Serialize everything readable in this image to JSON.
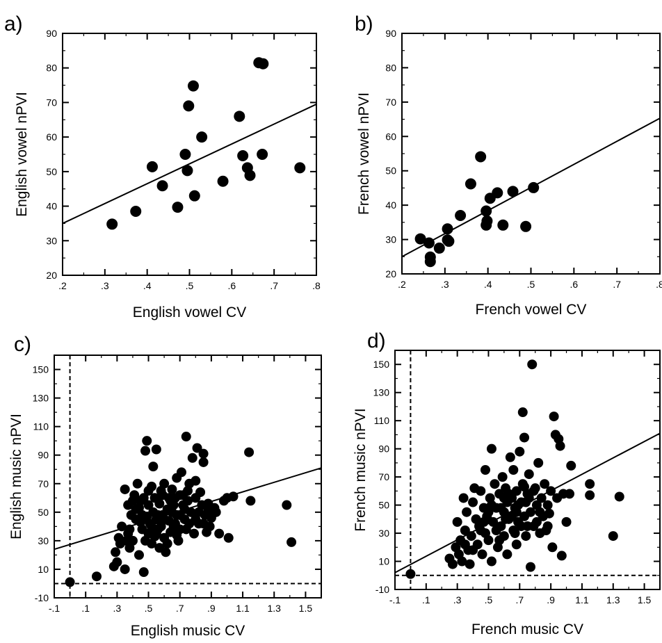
{
  "chart_data": [
    {
      "type": "scatter",
      "panel_label": "a)",
      "xlabel": "English vowel CV",
      "ylabel": "English  vowel  nPVI",
      "xlim": [
        0.2,
        0.8
      ],
      "ylim": [
        20,
        90
      ],
      "x_tick_labels": [
        ".2",
        ".3",
        ".4",
        ".5",
        ".6",
        ".7",
        ".8"
      ],
      "x_tick_values": [
        0.2,
        0.3,
        0.4,
        0.5,
        0.6,
        0.7,
        0.8
      ],
      "y_tick_labels": [
        "20",
        "30",
        "40",
        "50",
        "60",
        "70",
        "80",
        "90"
      ],
      "y_tick_values": [
        20,
        30,
        40,
        50,
        60,
        70,
        80,
        90
      ],
      "points": [
        [
          0.317,
          34.8
        ],
        [
          0.373,
          38.5
        ],
        [
          0.412,
          51.4
        ],
        [
          0.436,
          45.9
        ],
        [
          0.472,
          39.7
        ],
        [
          0.49,
          55.0
        ],
        [
          0.495,
          50.3
        ],
        [
          0.498,
          69.0
        ],
        [
          0.509,
          74.8
        ],
        [
          0.512,
          43.0
        ],
        [
          0.529,
          60.0
        ],
        [
          0.579,
          47.2
        ],
        [
          0.618,
          66.0
        ],
        [
          0.626,
          54.6
        ],
        [
          0.637,
          51.1
        ],
        [
          0.643,
          48.9
        ],
        [
          0.664,
          81.5
        ],
        [
          0.674,
          81.2
        ],
        [
          0.672,
          55.0
        ],
        [
          0.761,
          51.1
        ]
      ],
      "regression_line": [
        [
          0.2,
          35.0
        ],
        [
          0.8,
          69.5
        ]
      ],
      "dashed_lines": []
    },
    {
      "type": "scatter",
      "panel_label": "b)",
      "xlabel": "French vowel CV",
      "ylabel": "French  vowel  nPVI",
      "xlim": [
        0.2,
        0.8
      ],
      "ylim": [
        20,
        90
      ],
      "x_tick_labels": [
        ".2",
        ".3",
        ".4",
        ".5",
        ".6",
        ".7",
        ".8"
      ],
      "x_tick_values": [
        0.2,
        0.3,
        0.4,
        0.5,
        0.6,
        0.7,
        0.8
      ],
      "y_tick_labels": [
        "20",
        "30",
        "40",
        "50",
        "60",
        "70",
        "80",
        "90"
      ],
      "y_tick_values": [
        20,
        30,
        40,
        50,
        60,
        70,
        80,
        90
      ],
      "points": [
        [
          0.243,
          30.2
        ],
        [
          0.263,
          29.0
        ],
        [
          0.266,
          23.6
        ],
        [
          0.266,
          24.9
        ],
        [
          0.287,
          27.5
        ],
        [
          0.306,
          33.1
        ],
        [
          0.306,
          29.9
        ],
        [
          0.309,
          29.5
        ],
        [
          0.336,
          37.0
        ],
        [
          0.36,
          46.2
        ],
        [
          0.383,
          54.1
        ],
        [
          0.396,
          38.3
        ],
        [
          0.396,
          34.2
        ],
        [
          0.398,
          35.4
        ],
        [
          0.405,
          42.0
        ],
        [
          0.422,
          43.6
        ],
        [
          0.435,
          34.2
        ],
        [
          0.458,
          44.0
        ],
        [
          0.506,
          45.1
        ],
        [
          0.488,
          33.8
        ]
      ],
      "regression_line": [
        [
          0.2,
          25.0
        ],
        [
          0.8,
          65.3
        ]
      ],
      "dashed_lines": []
    },
    {
      "type": "scatter",
      "panel_label": "c)",
      "xlabel": "English music CV",
      "ylabel": "English  music  nPVI",
      "xlim": [
        -0.1,
        1.6
      ],
      "ylim": [
        -10,
        160
      ],
      "x_tick_labels": [
        "-.1",
        ".1",
        ".3",
        ".5",
        ".7",
        ".9",
        "1.1",
        "1.3",
        "1.5"
      ],
      "x_tick_values": [
        -0.1,
        0.1,
        0.3,
        0.5,
        0.7,
        0.9,
        1.1,
        1.3,
        1.5
      ],
      "y_tick_labels": [
        "-10",
        "10",
        "30",
        "50",
        "70",
        "90",
        "110",
        "130",
        "150"
      ],
      "y_tick_values": [
        -10,
        10,
        30,
        50,
        70,
        90,
        110,
        130,
        150
      ],
      "points": [
        [
          0.0,
          1
        ],
        [
          0.17,
          5
        ],
        [
          0.28,
          12
        ],
        [
          0.29,
          22
        ],
        [
          0.31,
          32
        ],
        [
          0.3,
          15
        ],
        [
          0.32,
          28
        ],
        [
          0.35,
          10
        ],
        [
          0.33,
          40
        ],
        [
          0.35,
          66
        ],
        [
          0.37,
          55
        ],
        [
          0.37,
          35
        ],
        [
          0.38,
          25
        ],
        [
          0.39,
          48
        ],
        [
          0.4,
          30
        ],
        [
          0.41,
          62
        ],
        [
          0.42,
          52
        ],
        [
          0.43,
          70
        ],
        [
          0.44,
          20
        ],
        [
          0.45,
          43
        ],
        [
          0.46,
          38
        ],
        [
          0.47,
          60
        ],
        [
          0.47,
          8
        ],
        [
          0.48,
          93
        ],
        [
          0.49,
          100
        ],
        [
          0.49,
          47
        ],
        [
          0.5,
          55
        ],
        [
          0.5,
          35
        ],
        [
          0.51,
          42
        ],
        [
          0.52,
          28
        ],
        [
          0.52,
          68
        ],
        [
          0.53,
          82
        ],
        [
          0.53,
          50
        ],
        [
          0.54,
          60
        ],
        [
          0.55,
          94
        ],
        [
          0.55,
          45
        ],
        [
          0.56,
          38
        ],
        [
          0.57,
          25
        ],
        [
          0.57,
          56
        ],
        [
          0.58,
          65
        ],
        [
          0.59,
          48
        ],
        [
          0.6,
          32
        ],
        [
          0.6,
          70
        ],
        [
          0.61,
          22
        ],
        [
          0.62,
          52
        ],
        [
          0.63,
          44
        ],
        [
          0.63,
          60
        ],
        [
          0.64,
          36
        ],
        [
          0.65,
          66
        ],
        [
          0.66,
          55
        ],
        [
          0.67,
          42
        ],
        [
          0.68,
          74
        ],
        [
          0.68,
          48
        ],
        [
          0.69,
          30
        ],
        [
          0.7,
          62
        ],
        [
          0.71,
          78
        ],
        [
          0.72,
          55
        ],
        [
          0.73,
          45
        ],
        [
          0.74,
          103
        ],
        [
          0.74,
          38
        ],
        [
          0.75,
          58
        ],
        [
          0.76,
          70
        ],
        [
          0.77,
          50
        ],
        [
          0.78,
          88
        ],
        [
          0.79,
          35
        ],
        [
          0.8,
          72
        ],
        [
          0.8,
          60
        ],
        [
          0.81,
          95
        ],
        [
          0.82,
          42
        ],
        [
          0.83,
          64
        ],
        [
          0.84,
          55
        ],
        [
          0.85,
          91
        ],
        [
          0.85,
          85
        ],
        [
          0.86,
          48
        ],
        [
          0.87,
          36
        ],
        [
          0.88,
          56
        ],
        [
          0.89,
          40
        ],
        [
          0.9,
          46
        ],
        [
          0.92,
          53
        ],
        [
          0.95,
          35
        ],
        [
          0.98,
          58
        ],
        [
          1.0,
          60
        ],
        [
          1.01,
          32
        ],
        [
          1.04,
          61
        ],
        [
          1.14,
          92
        ],
        [
          1.15,
          58
        ],
        [
          1.38,
          55
        ],
        [
          1.41,
          29
        ],
        [
          0.4,
          58
        ],
        [
          0.45,
          58
        ],
        [
          0.5,
          65
        ],
        [
          0.55,
          35
        ],
        [
          0.6,
          45
        ],
        [
          0.65,
          50
        ],
        [
          0.7,
          38
        ],
        [
          0.75,
          65
        ],
        [
          0.8,
          45
        ],
        [
          0.85,
          42
        ],
        [
          0.58,
          40
        ],
        [
          0.62,
          28
        ],
        [
          0.66,
          40
        ],
        [
          0.46,
          48
        ],
        [
          0.52,
          40
        ],
        [
          0.68,
          34
        ],
        [
          0.72,
          62
        ],
        [
          0.56,
          48
        ],
        [
          0.36,
          30
        ],
        [
          0.42,
          45
        ],
        [
          0.48,
          30
        ],
        [
          0.54,
          33
        ],
        [
          0.64,
          58
        ],
        [
          0.7,
          48
        ],
        [
          0.76,
          42
        ],
        [
          0.82,
          50
        ],
        [
          0.88,
          52
        ],
        [
          0.93,
          50
        ],
        [
          0.38,
          38
        ],
        [
          0.44,
          53
        ],
        [
          0.59,
          62
        ],
        [
          0.67,
          60
        ],
        [
          0.73,
          52
        ]
      ],
      "regression_line": [
        [
          -0.1,
          24
        ],
        [
          1.6,
          81
        ]
      ],
      "dashed_lines": [
        {
          "axis": "x",
          "value": 0.0
        },
        {
          "axis": "y",
          "value": 0.0
        }
      ]
    },
    {
      "type": "scatter",
      "panel_label": "d)",
      "xlabel": "French music CV",
      "ylabel": "French  music  nPVI",
      "xlim": [
        -0.1,
        1.6
      ],
      "ylim": [
        -10,
        160
      ],
      "x_tick_labels": [
        "-.1",
        ".1",
        ".3",
        ".5",
        ".7",
        ".9",
        "1.1",
        "1.3",
        "1.5"
      ],
      "x_tick_values": [
        -0.1,
        0.1,
        0.3,
        0.5,
        0.7,
        0.9,
        1.1,
        1.3,
        1.5
      ],
      "y_tick_labels": [
        "-10",
        "10",
        "30",
        "50",
        "70",
        "90",
        "110",
        "130",
        "150"
      ],
      "y_tick_values": [
        -10,
        10,
        30,
        50,
        70,
        90,
        110,
        130,
        150
      ],
      "points": [
        [
          0.0,
          1
        ],
        [
          0.25,
          12
        ],
        [
          0.27,
          8
        ],
        [
          0.29,
          20
        ],
        [
          0.3,
          38
        ],
        [
          0.31,
          15
        ],
        [
          0.32,
          25
        ],
        [
          0.33,
          10
        ],
        [
          0.34,
          55
        ],
        [
          0.35,
          32
        ],
        [
          0.36,
          45
        ],
        [
          0.37,
          18
        ],
        [
          0.38,
          8
        ],
        [
          0.39,
          28
        ],
        [
          0.4,
          52
        ],
        [
          0.41,
          62
        ],
        [
          0.42,
          40
        ],
        [
          0.43,
          22
        ],
        [
          0.44,
          35
        ],
        [
          0.45,
          60
        ],
        [
          0.46,
          15
        ],
        [
          0.47,
          48
        ],
        [
          0.48,
          75
        ],
        [
          0.48,
          30
        ],
        [
          0.49,
          42
        ],
        [
          0.5,
          25
        ],
        [
          0.51,
          55
        ],
        [
          0.52,
          90
        ],
        [
          0.52,
          10
        ],
        [
          0.53,
          38
        ],
        [
          0.54,
          65
        ],
        [
          0.55,
          48
        ],
        [
          0.56,
          20
        ],
        [
          0.57,
          58
        ],
        [
          0.58,
          35
        ],
        [
          0.59,
          70
        ],
        [
          0.6,
          28
        ],
        [
          0.6,
          45
        ],
        [
          0.61,
          62
        ],
        [
          0.62,
          15
        ],
        [
          0.62,
          52
        ],
        [
          0.63,
          40
        ],
        [
          0.64,
          84
        ],
        [
          0.65,
          55
        ],
        [
          0.66,
          32
        ],
        [
          0.66,
          75
        ],
        [
          0.67,
          48
        ],
        [
          0.68,
          60
        ],
        [
          0.68,
          22
        ],
        [
          0.69,
          38
        ],
        [
          0.7,
          88
        ],
        [
          0.71,
          52
        ],
        [
          0.72,
          116
        ],
        [
          0.72,
          65
        ],
        [
          0.73,
          98
        ],
        [
          0.73,
          42
        ],
        [
          0.74,
          28
        ],
        [
          0.75,
          58
        ],
        [
          0.76,
          72
        ],
        [
          0.77,
          6
        ],
        [
          0.77,
          45
        ],
        [
          0.78,
          150
        ],
        [
          0.79,
          35
        ],
        [
          0.8,
          62
        ],
        [
          0.81,
          50
        ],
        [
          0.82,
          80
        ],
        [
          0.83,
          30
        ],
        [
          0.84,
          55
        ],
        [
          0.85,
          42
        ],
        [
          0.86,
          65
        ],
        [
          0.87,
          32
        ],
        [
          0.88,
          50
        ],
        [
          0.89,
          44
        ],
        [
          0.9,
          60
        ],
        [
          0.91,
          20
        ],
        [
          0.92,
          113
        ],
        [
          0.93,
          100
        ],
        [
          0.94,
          55
        ],
        [
          0.95,
          97
        ],
        [
          0.96,
          92
        ],
        [
          0.97,
          14
        ],
        [
          0.98,
          58
        ],
        [
          1.0,
          38
        ],
        [
          1.02,
          58
        ],
        [
          1.03,
          78
        ],
        [
          1.15,
          65
        ],
        [
          1.15,
          57
        ],
        [
          1.3,
          28
        ],
        [
          1.34,
          56
        ],
        [
          0.55,
          32
        ],
        [
          0.58,
          48
        ],
        [
          0.63,
          58
        ],
        [
          0.67,
          30
        ],
        [
          0.71,
          35
        ],
        [
          0.74,
          52
        ],
        [
          0.79,
          60
        ],
        [
          0.83,
          45
        ],
        [
          0.88,
          35
        ],
        [
          0.45,
          32
        ],
        [
          0.5,
          45
        ],
        [
          0.4,
          18
        ],
        [
          0.35,
          22
        ],
        [
          0.61,
          40
        ],
        [
          0.69,
          50
        ],
        [
          0.76,
          55
        ],
        [
          0.57,
          25
        ],
        [
          0.65,
          42
        ],
        [
          0.73,
          63
        ],
        [
          0.81,
          38
        ],
        [
          0.6,
          55
        ],
        [
          0.68,
          45
        ],
        [
          0.75,
          35
        ],
        [
          0.52,
          50
        ],
        [
          0.47,
          38
        ]
      ],
      "regression_line": [
        [
          -0.1,
          2
        ],
        [
          1.6,
          101
        ]
      ],
      "dashed_lines": [
        {
          "axis": "x",
          "value": 0.0
        },
        {
          "axis": "y",
          "value": 0.0
        }
      ]
    }
  ]
}
